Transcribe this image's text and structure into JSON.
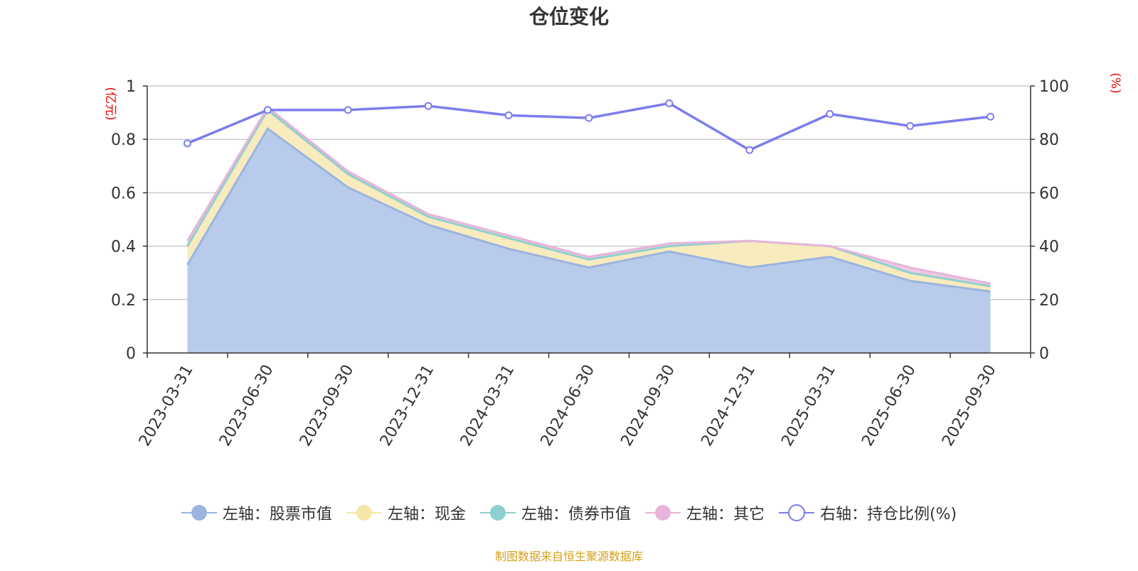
{
  "chart_data": {
    "type": "area",
    "title": "仓位变化",
    "left_axis_unit": "(亿元)",
    "right_axis_unit": "(%)",
    "categories": [
      "2023-03-31",
      "2023-06-30",
      "2023-09-30",
      "2023-12-31",
      "2024-03-31",
      "2024-06-30",
      "2024-09-30",
      "2024-12-31",
      "2025-03-31",
      "2025-06-30",
      "2025-09-30"
    ],
    "y_left": {
      "min": 0,
      "max": 1,
      "ticks": [
        "0",
        "0.2",
        "0.4",
        "0.6",
        "0.8",
        "1"
      ]
    },
    "y_right": {
      "min": 0,
      "max": 100,
      "ticks": [
        "0",
        "20",
        "40",
        "60",
        "80",
        "100"
      ]
    },
    "grid": true,
    "legend_position": "bottom",
    "stacked_series": [
      {
        "name": "左轴：股票市值",
        "color": "#9bb4e0",
        "fill": "#b8cbea",
        "values": [
          0.33,
          0.84,
          0.62,
          0.48,
          0.39,
          0.32,
          0.38,
          0.32,
          0.36,
          0.27,
          0.23
        ]
      },
      {
        "name": "左轴：现金",
        "color": "#f7e6a6",
        "fill": "#f8ebbd",
        "values": [
          0.07,
          0.07,
          0.05,
          0.03,
          0.04,
          0.03,
          0.02,
          0.1,
          0.04,
          0.03,
          0.02
        ]
      },
      {
        "name": "左轴：债券市值",
        "color": "#8fcfcf",
        "fill": "#b5e2e0",
        "values": [
          0,
          0,
          0,
          0,
          0,
          0,
          0,
          0,
          0,
          0,
          0
        ]
      },
      {
        "name": "左轴：其它",
        "color": "#e7b5da",
        "fill": "#efc9e4",
        "values": [
          0.02,
          0.01,
          0.01,
          0.01,
          0.01,
          0.01,
          0.01,
          0,
          0,
          0.02,
          0.01
        ]
      }
    ],
    "line_series": {
      "name": "右轴：持仓比例(%)",
      "color": "#7b7ded",
      "values": [
        78.5,
        91.0,
        91.0,
        92.5,
        89.0,
        88.0,
        93.5,
        76.0,
        89.5,
        85.0,
        88.5
      ]
    }
  },
  "source_text": "制图数据来自恒生聚源数据库"
}
